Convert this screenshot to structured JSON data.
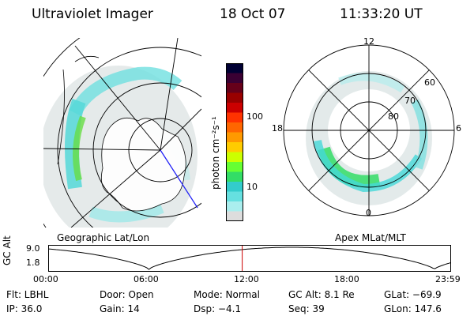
{
  "header": {
    "instrument": "Ultraviolet Imager",
    "date": "18 Oct 07",
    "time": "11:33:20 UT"
  },
  "colorbar": {
    "label": "photon cm⁻²s⁻¹",
    "ticks": [
      "100",
      "10"
    ],
    "colors": [
      "#000033",
      "#3a0033",
      "#66001a",
      "#990000",
      "#cc0000",
      "#ff3300",
      "#ff6600",
      "#ff9900",
      "#ffcc00",
      "#ccff00",
      "#66ff33",
      "#33dd66",
      "#33cccc",
      "#66e0e0",
      "#aaeeee",
      "#dddddd"
    ]
  },
  "left_panel": {
    "caption": "Geographic Lat/Lon"
  },
  "right_panel": {
    "caption": "Apex MLat/MLT",
    "mlt_labels": {
      "top": "12",
      "right": "6",
      "bottom": "0",
      "left": "18"
    },
    "lat_labels": [
      "60",
      "70",
      "80"
    ]
  },
  "altitude_plot": {
    "ylabel": "GC Alt",
    "y_ticks": [
      "9.0",
      "1.8"
    ],
    "x_ticks": [
      "00:00",
      "06:00",
      "12:00",
      "18:00",
      "23:59"
    ],
    "marker_time": "11:33:20"
  },
  "info": {
    "flt": "Flt: LBHL",
    "door": "Door: Open",
    "mode": "Mode: Normal",
    "gc_alt": "GC Alt: 8.1 Re",
    "glat": "GLat: −69.9",
    "ip": "IP: 36.0",
    "gain": "Gain: 14",
    "dsp": "Dsp:   −4.1",
    "seq": "Seq: 39",
    "glon": "GLon: 147.6"
  },
  "colors": {
    "aurora_low": "#d8e2e2",
    "aurora_mid": "#44d8d8",
    "aurora_high": "#55dd44",
    "marker": "#cc0000",
    "track": "#2020ff"
  }
}
